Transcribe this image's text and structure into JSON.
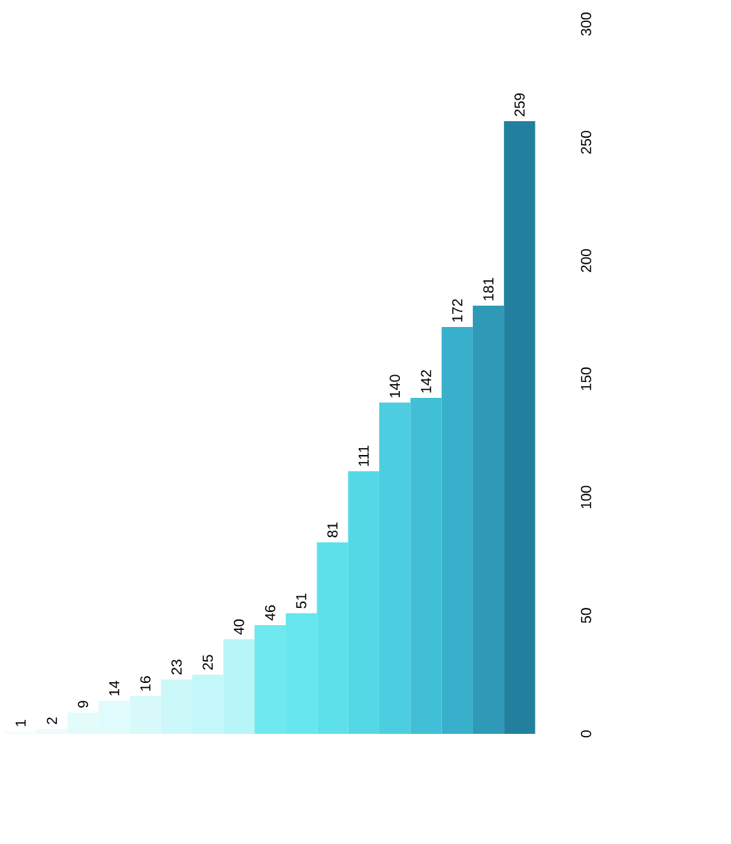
{
  "chart_data": {
    "type": "bar",
    "categories": [
      null,
      null,
      null,
      null,
      null,
      null,
      null,
      null,
      null,
      null,
      null,
      null,
      null,
      null,
      null,
      null,
      null
    ],
    "values": [
      1,
      2,
      9,
      14,
      16,
      23,
      25,
      40,
      46,
      51,
      81,
      111,
      140,
      142,
      172,
      181,
      259
    ],
    "colors": [
      "#f0fdfe",
      "#ecfcfd",
      "#e4fbfc",
      "#e0fbfc",
      "#d8fafb",
      "#cdf8fa",
      "#c4f7fa",
      "#b8f5f8",
      "#6ee9f0",
      "#66e6ee",
      "#5ee0ea",
      "#55d8e6",
      "#4ccde0",
      "#40bfd6",
      "#38b0cc",
      "#2e9ab8",
      "#22809e"
    ],
    "ylim": [
      0,
      300
    ],
    "yticks": [
      0,
      50,
      100,
      150,
      200,
      250,
      300
    ],
    "tick_labels": "y",
    "data_labels": true
  }
}
